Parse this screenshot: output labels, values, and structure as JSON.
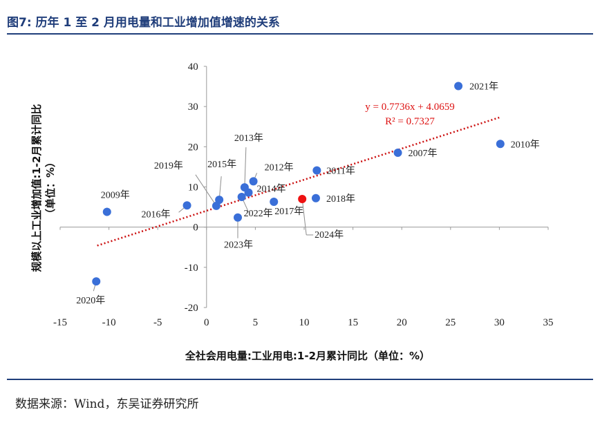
{
  "figure": {
    "title": "图7:  历年 1 至 2 月用电量和工业增加值增速的关系",
    "source": "数据来源：Wind，东吴证券研究所"
  },
  "colors": {
    "point": "#3a6fd8",
    "highlight": "#ee1111",
    "trend": "#cc1111",
    "accent": "#1f3d7a"
  },
  "chart_data": {
    "type": "scatter",
    "xlabel": "全社会用电量:工业用电:1-2月累计同比（单位：%）",
    "ylabel_line1": "规模以上工业增加值:1-2月累计同比",
    "ylabel_line2": "（单位：%）",
    "xlim": [
      -15,
      35
    ],
    "ylim": [
      -20,
      40
    ],
    "xticks": [
      -15,
      -10,
      -5,
      0,
      5,
      10,
      15,
      20,
      25,
      30,
      35
    ],
    "yticks": [
      -20,
      -10,
      0,
      10,
      20,
      30,
      40
    ],
    "points": [
      {
        "label": "2021年",
        "x": 25.8,
        "y": 35.1,
        "highlight": false
      },
      {
        "label": "2010年",
        "x": 30.1,
        "y": 20.7,
        "highlight": false
      },
      {
        "label": "2007年",
        "x": 19.6,
        "y": 18.5,
        "highlight": false
      },
      {
        "label": "2011年",
        "x": 11.3,
        "y": 14.1,
        "highlight": false
      },
      {
        "label": "2012年",
        "x": 4.8,
        "y": 11.4,
        "highlight": false
      },
      {
        "label": "2013年",
        "x": 3.9,
        "y": 9.9,
        "highlight": false
      },
      {
        "label": "2014年",
        "x": 4.3,
        "y": 8.6,
        "highlight": false
      },
      {
        "label": "2015年",
        "x": 1.3,
        "y": 6.8,
        "highlight": false
      },
      {
        "label": "2019年",
        "x": 1.0,
        "y": 5.3,
        "highlight": false
      },
      {
        "label": "2016年",
        "x": -2.0,
        "y": 5.4,
        "highlight": false
      },
      {
        "label": "2009年",
        "x": -10.2,
        "y": 3.8,
        "highlight": false
      },
      {
        "label": "2018年",
        "x": 11.2,
        "y": 7.2,
        "highlight": false
      },
      {
        "label": "2017年",
        "x": 6.9,
        "y": 6.3,
        "highlight": false
      },
      {
        "label": "2022年",
        "x": 3.6,
        "y": 7.5,
        "highlight": false
      },
      {
        "label": "2023年",
        "x": 3.2,
        "y": 2.4,
        "highlight": false
      },
      {
        "label": "2020年",
        "x": -11.3,
        "y": -13.5,
        "highlight": false
      },
      {
        "label": "2024年",
        "x": 9.8,
        "y": 7.0,
        "highlight": true
      }
    ],
    "trendline": {
      "slope": 0.7736,
      "intercept": 4.0659,
      "x_range": [
        -11.2,
        30.0
      ],
      "equation": "y = 0.7736x + 4.0659",
      "r2": "R² = 0.7327"
    }
  }
}
